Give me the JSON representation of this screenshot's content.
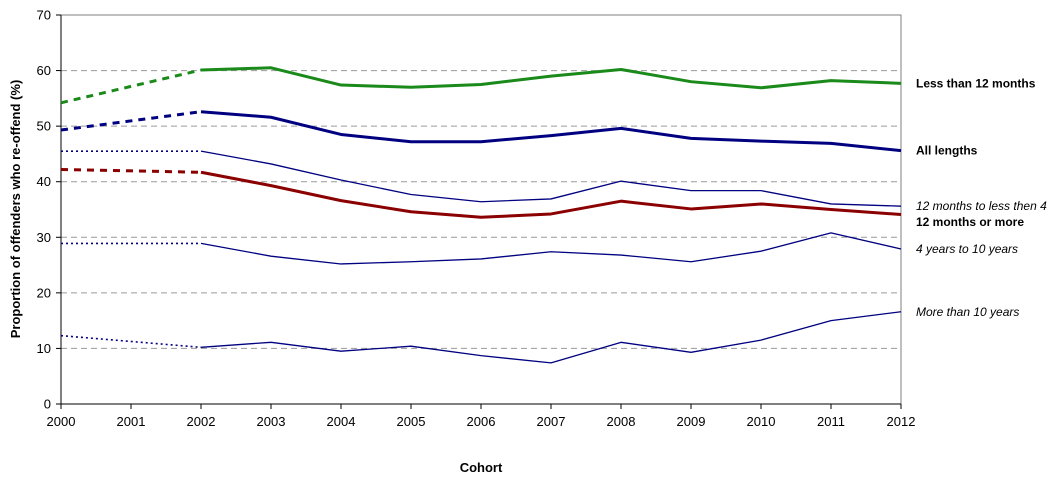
{
  "chart_data": {
    "type": "line",
    "xlabel": "Cohort",
    "ylabel": "Proportion of offenders who re-offend (%)",
    "ylim": [
      0,
      70
    ],
    "yticks": [
      0,
      10,
      20,
      30,
      40,
      50,
      60,
      70
    ],
    "x": [
      2000,
      2001,
      2002,
      2003,
      2004,
      2005,
      2006,
      2007,
      2008,
      2009,
      2010,
      2011,
      2012
    ],
    "grid": "horizontal dashed",
    "series": [
      {
        "name": "Less than 12 months",
        "color": "#1a8a1a",
        "width": "thick",
        "labelStyle": "bold",
        "dotted_x": [
          2000,
          2002
        ],
        "dotted_y": [
          54.2,
          60.1
        ],
        "x": [
          2002,
          2003,
          2004,
          2005,
          2006,
          2007,
          2008,
          2009,
          2010,
          2011,
          2012
        ],
        "y": [
          60.1,
          60.5,
          57.4,
          57.0,
          57.5,
          59.0,
          60.2,
          58.0,
          56.9,
          58.2,
          57.7
        ]
      },
      {
        "name": "All lengths",
        "color": "#000080",
        "width": "thick",
        "labelStyle": "bold",
        "dotted_x": [
          2000,
          2002
        ],
        "dotted_y": [
          49.3,
          52.6
        ],
        "x": [
          2002,
          2003,
          2004,
          2005,
          2006,
          2007,
          2008,
          2009,
          2010,
          2011,
          2012
        ],
        "y": [
          52.6,
          51.6,
          48.5,
          47.2,
          47.2,
          48.3,
          49.6,
          47.8,
          47.3,
          46.9,
          45.6
        ]
      },
      {
        "name": "12 months to less then 4",
        "color": "#000080",
        "width": "thin",
        "labelStyle": "italic",
        "dotted_x": [
          2000,
          2002
        ],
        "dotted_y": [
          45.5,
          45.5
        ],
        "x": [
          2002,
          2003,
          2004,
          2005,
          2006,
          2007,
          2008,
          2009,
          2010,
          2011,
          2012
        ],
        "y": [
          45.5,
          43.2,
          40.3,
          37.7,
          36.4,
          36.9,
          40.1,
          38.4,
          38.4,
          36.0,
          35.6
        ]
      },
      {
        "name": "12 months or more",
        "color": "#8b0000",
        "width": "thick",
        "labelStyle": "bold",
        "dotted_x": [
          2000,
          2002
        ],
        "dotted_y": [
          42.2,
          41.7
        ],
        "x": [
          2002,
          2003,
          2004,
          2005,
          2006,
          2007,
          2008,
          2009,
          2010,
          2011,
          2012
        ],
        "y": [
          41.7,
          39.3,
          36.6,
          34.6,
          33.6,
          34.2,
          36.5,
          35.1,
          36.0,
          35.0,
          34.1
        ]
      },
      {
        "name": "4 years to 10 years",
        "color": "#000080",
        "width": "thin",
        "labelStyle": "italic",
        "dotted_x": [
          2000,
          2002
        ],
        "dotted_y": [
          28.9,
          28.9
        ],
        "x": [
          2002,
          2003,
          2004,
          2005,
          2006,
          2007,
          2008,
          2009,
          2010,
          2011,
          2012
        ],
        "y": [
          28.9,
          26.6,
          25.2,
          25.6,
          26.1,
          27.4,
          26.8,
          25.6,
          27.5,
          30.8,
          27.9
        ]
      },
      {
        "name": "More than 10 years",
        "color": "#000080",
        "width": "thin",
        "labelStyle": "italic",
        "dotted_x": [
          2000,
          2002
        ],
        "dotted_y": [
          12.3,
          10.2
        ],
        "x": [
          2002,
          2003,
          2004,
          2005,
          2006,
          2007,
          2008,
          2009,
          2010,
          2011,
          2012
        ],
        "y": [
          10.2,
          11.1,
          9.5,
          10.4,
          8.7,
          7.4,
          11.1,
          9.3,
          11.5,
          15.0,
          16.6
        ]
      }
    ]
  }
}
